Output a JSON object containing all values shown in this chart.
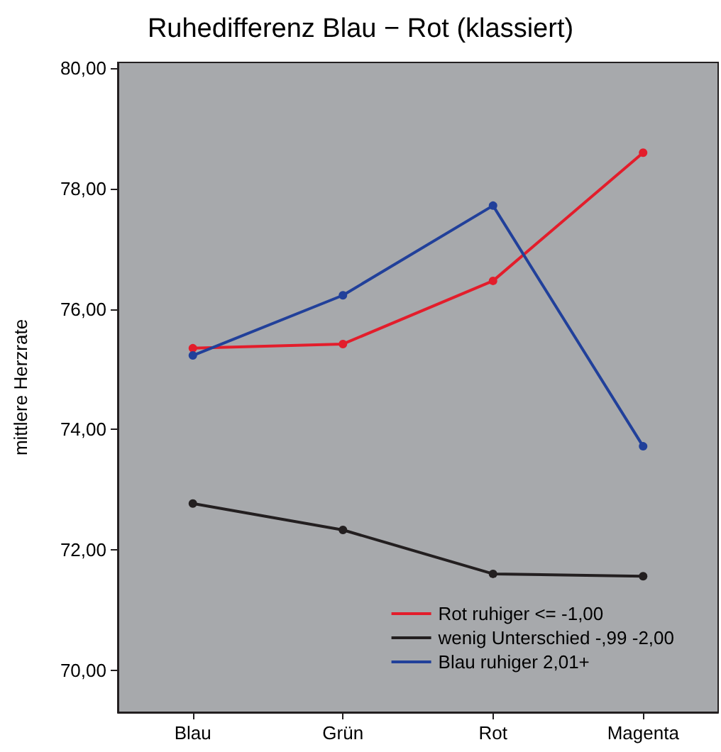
{
  "chart_data": {
    "type": "line",
    "title": "Ruhedifferenz Blau − Rot (klassiert)",
    "ylabel": "mittlere Herzrate",
    "categories": [
      "Blau",
      "Grün",
      "Rot",
      "Magenta"
    ],
    "series": [
      {
        "name": "Rot ruhiger <= -1,00",
        "color": "#e31d2b",
        "values": [
          75.35,
          75.42,
          76.47,
          78.6
        ]
      },
      {
        "name": "wenig Unterschied -,99 -2,00",
        "color": "#231f20",
        "values": [
          72.77,
          72.33,
          71.6,
          71.56
        ]
      },
      {
        "name": "Blau ruhiger 2,01+",
        "color": "#21409a",
        "values": [
          75.23,
          76.23,
          77.72,
          73.72
        ]
      }
    ],
    "ylim": [
      69.3,
      80.1
    ],
    "yticks": [
      {
        "value": 70,
        "label": "70,00"
      },
      {
        "value": 72,
        "label": "72,00"
      },
      {
        "value": 74,
        "label": "74,00"
      },
      {
        "value": 76,
        "label": "76,00"
      },
      {
        "value": 78,
        "label": "78,00"
      },
      {
        "value": 80,
        "label": "80,00"
      }
    ],
    "grid": false,
    "legend": "bottom right",
    "marker": "circle",
    "line_style": "solid"
  }
}
